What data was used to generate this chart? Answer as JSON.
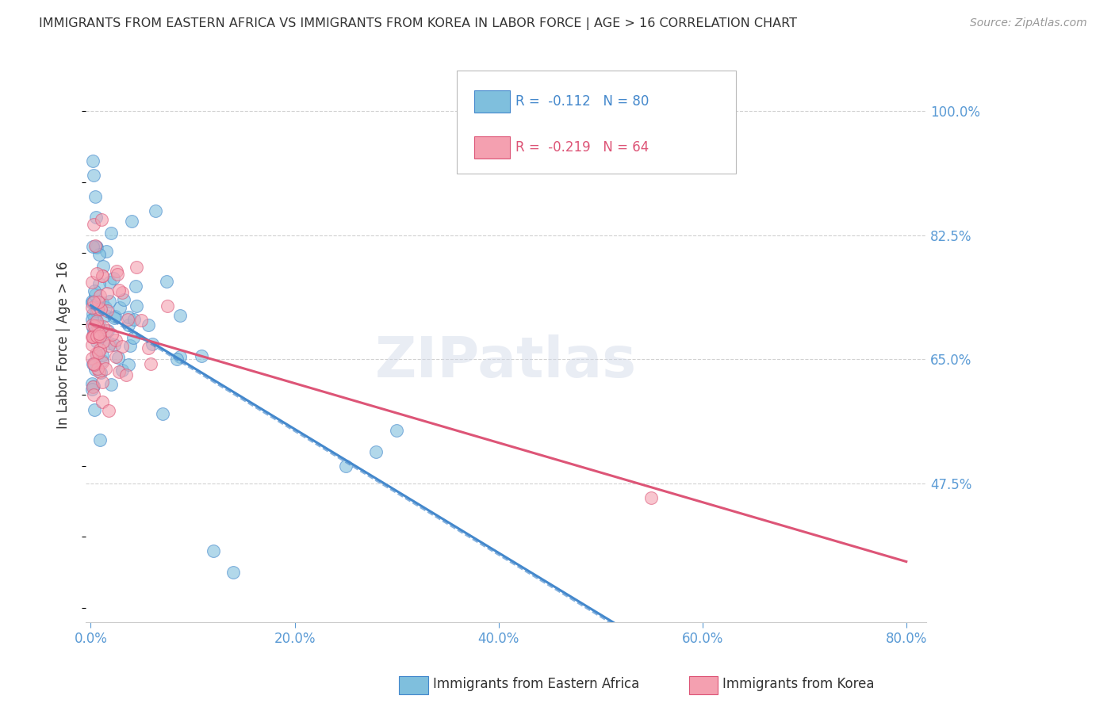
{
  "title": "IMMIGRANTS FROM EASTERN AFRICA VS IMMIGRANTS FROM KOREA IN LABOR FORCE | AGE > 16 CORRELATION CHART",
  "source": "Source: ZipAtlas.com",
  "ylabel": "In Labor Force | Age > 16",
  "color_eastern": "#7fbfdd",
  "color_korea": "#f4a0b0",
  "line_color_eastern": "#4488cc",
  "line_color_korea": "#dd5577",
  "legend_R_eastern_val": "-0.112",
  "legend_N_eastern_val": "80",
  "legend_R_korea_val": "-0.219",
  "legend_N_korea_val": "64",
  "R_eastern": -0.112,
  "N_eastern": 80,
  "R_korea": -0.219,
  "N_korea": 64,
  "ylim": [
    0.28,
    1.06
  ],
  "xlim": [
    -0.005,
    0.82
  ],
  "y_tick_vals": [
    0.475,
    0.65,
    0.825,
    1.0
  ],
  "y_tick_labels": [
    "47.5%",
    "65.0%",
    "82.5%",
    "100.0%"
  ],
  "x_tick_vals": [
    0.0,
    0.2,
    0.4,
    0.6,
    0.8
  ],
  "x_tick_labels": [
    "0.0%",
    "20.0%",
    "40.0%",
    "60.0%",
    "80.0%"
  ],
  "background_color": "#ffffff",
  "grid_color": "#cccccc",
  "title_color": "#333333",
  "tick_color": "#5b9bd5"
}
